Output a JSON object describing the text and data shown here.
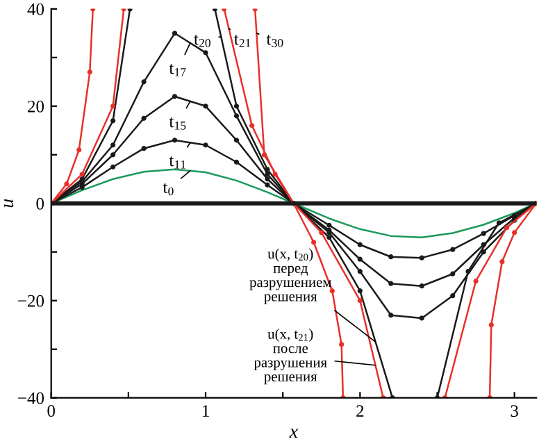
{
  "chart_data": {
    "type": "line",
    "xlabel": "x",
    "ylabel": "u",
    "xlim": [
      0,
      3.1416
    ],
    "ylim": [
      -40,
      40
    ],
    "xticks": [
      0,
      {
        "value": 0.5,
        "label": null
      },
      1,
      {
        "value": 1.5,
        "label": null
      },
      2,
      {
        "value": 2.5,
        "label": null
      },
      3
    ],
    "yticks": [
      -40,
      {
        "value": -30,
        "label": null
      },
      -20,
      {
        "value": -10,
        "label": null
      },
      0,
      {
        "value": 10,
        "label": null
      },
      20,
      {
        "value": 30,
        "label": null
      },
      40
    ],
    "grid": false,
    "legend": false,
    "marker": "circle",
    "line_style": "solid",
    "ref_lines": [
      {
        "axis": "y",
        "value": 0,
        "color": "#1a1a1a"
      }
    ],
    "series": [
      {
        "color": "#1a9a5a",
        "marker": "none",
        "x": [
          0,
          0.2,
          0.4,
          0.6,
          0.8,
          1.0,
          1.2,
          1.4,
          1.57,
          1.8,
          2.0,
          2.2,
          2.4,
          2.6,
          2.8,
          3.0,
          3.14
        ],
        "values": [
          0,
          2.7,
          5.0,
          6.5,
          7.0,
          6.4,
          4.7,
          2.3,
          0,
          -3.1,
          -5.3,
          -6.7,
          -7.0,
          -6.1,
          -4.4,
          -2.0,
          0
        ]
      },
      {
        "color": "#1a1a1a",
        "x": [
          0,
          0.2,
          0.4,
          0.6,
          0.8,
          1.0,
          1.2,
          1.4,
          1.57,
          1.8,
          2.0,
          2.2,
          2.4,
          2.6,
          2.8,
          3.0,
          3.14
        ],
        "values": [
          0,
          3.3,
          7.5,
          11.3,
          13,
          12,
          8.5,
          3.8,
          0,
          -4.5,
          -8.5,
          -11,
          -11.2,
          -9.5,
          -6.2,
          -2.5,
          0
        ]
      },
      {
        "color": "#1a1a1a",
        "x": [
          0,
          0.2,
          0.4,
          0.6,
          0.8,
          1.0,
          1.2,
          1.4,
          1.57,
          1.8,
          2.0,
          2.2,
          2.4,
          2.6,
          2.8,
          3.0,
          3.14
        ],
        "values": [
          0,
          4,
          10,
          17.5,
          22,
          20,
          13,
          5,
          0,
          -5.5,
          -11.5,
          -16.5,
          -17,
          -14.5,
          -8.5,
          -3,
          0
        ]
      },
      {
        "color": "#1a1a1a",
        "x": [
          0,
          0.2,
          0.4,
          0.6,
          0.8,
          1.0,
          1.2,
          1.4,
          1.57,
          1.8,
          2.0,
          2.2,
          2.4,
          2.6,
          2.8,
          3.0,
          3.14
        ],
        "values": [
          0,
          4.5,
          12,
          25,
          35,
          31,
          18,
          6,
          0,
          -6,
          -14,
          -23,
          -23.6,
          -19,
          -10,
          -3.5,
          0
        ]
      },
      {
        "color": "#1a1a1a",
        "x": [
          0,
          0.2,
          0.4,
          0.51,
          0.79,
          1.06,
          1.2,
          1.4,
          1.57,
          1.8,
          2.0,
          2.21,
          2.35,
          2.5,
          2.7,
          2.9,
          3.14
        ],
        "values": [
          0,
          5,
          17,
          40,
          null,
          40,
          20,
          7,
          0,
          -7,
          -18,
          -40,
          null,
          -40,
          -14,
          -4,
          0
        ]
      },
      {
        "color": "#e8302a",
        "x": [
          0,
          0.2,
          0.4,
          0.47,
          0.79,
          1.12,
          1.3,
          1.45,
          1.57,
          1.75,
          2.0,
          2.15,
          2.35,
          2.55,
          2.75,
          2.95,
          3.14
        ],
        "values": [
          0,
          6,
          20,
          40,
          null,
          40,
          16,
          6,
          0,
          -6,
          -20,
          -40,
          null,
          -40,
          -16,
          -5,
          0
        ]
      },
      {
        "color": "#e8302a",
        "x": [
          0,
          0.1,
          0.18,
          0.25,
          0.27,
          0.79,
          1.32,
          1.38,
          1.57,
          1.7,
          1.82,
          1.88,
          1.89,
          2.35,
          2.84,
          2.85,
          2.92,
          3.0,
          3.14
        ],
        "values": [
          0,
          4,
          11,
          27,
          40,
          null,
          40,
          10,
          0,
          -8,
          -18,
          -29,
          -40,
          null,
          -40,
          -25,
          -12,
          -6,
          0
        ]
      }
    ],
    "annotations": [
      {
        "text": "t$_{20}$",
        "x": 1.1,
        "y": 34.3
      },
      {
        "text": "t$_{21}$",
        "x": 1.15,
        "y": 36
      },
      {
        "text": "t$_{30}$",
        "x": 1.33,
        "y": 35
      },
      {
        "text": "t$_{17}$",
        "x": 0.9,
        "y": 33
      },
      {
        "text": "t$_{15}$",
        "x": 0.9,
        "y": 21
      },
      {
        "text": "t$_{11}$",
        "x": 0.9,
        "y": 12.5
      },
      {
        "text": "t$_{0}$",
        "x": 0.9,
        "y": 6.7
      },
      {
        "text": "u(x, t$_{20}$)\nперед\nразрушением\nрешения",
        "x": 2.1,
        "y": -28.5
      },
      {
        "text": "u(x, t$_{21}$)\nпосле\nразрушения\nрешения",
        "x": 2.1,
        "y": -33.3
      }
    ]
  }
}
